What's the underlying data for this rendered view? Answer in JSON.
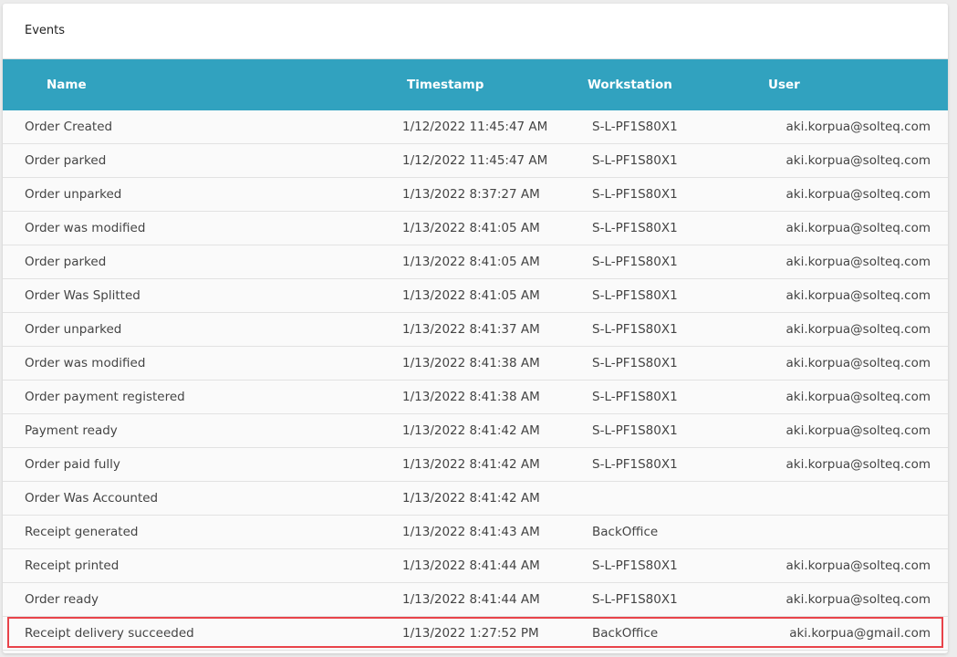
{
  "title": "Events",
  "columns": [
    "Name",
    "Timestamp",
    "Workstation",
    "User"
  ],
  "rows": [
    [
      "Order Created",
      "1/12/2022 11:45:47 AM",
      "S-L-PF1S80X1",
      "aki.korpua@solteq.com"
    ],
    [
      "Order parked",
      "1/12/2022 11:45:47 AM",
      "S-L-PF1S80X1",
      "aki.korpua@solteq.com"
    ],
    [
      "Order unparked",
      "1/13/2022 8:37:27 AM",
      "S-L-PF1S80X1",
      "aki.korpua@solteq.com"
    ],
    [
      "Order was modified",
      "1/13/2022 8:41:05 AM",
      "S-L-PF1S80X1",
      "aki.korpua@solteq.com"
    ],
    [
      "Order parked",
      "1/13/2022 8:41:05 AM",
      "S-L-PF1S80X1",
      "aki.korpua@solteq.com"
    ],
    [
      "Order Was Splitted",
      "1/13/2022 8:41:05 AM",
      "S-L-PF1S80X1",
      "aki.korpua@solteq.com"
    ],
    [
      "Order unparked",
      "1/13/2022 8:41:37 AM",
      "S-L-PF1S80X1",
      "aki.korpua@solteq.com"
    ],
    [
      "Order was modified",
      "1/13/2022 8:41:38 AM",
      "S-L-PF1S80X1",
      "aki.korpua@solteq.com"
    ],
    [
      "Order payment registered",
      "1/13/2022 8:41:38 AM",
      "S-L-PF1S80X1",
      "aki.korpua@solteq.com"
    ],
    [
      "Payment ready",
      "1/13/2022 8:41:42 AM",
      "S-L-PF1S80X1",
      "aki.korpua@solteq.com"
    ],
    [
      "Order paid fully",
      "1/13/2022 8:41:42 AM",
      "S-L-PF1S80X1",
      "aki.korpua@solteq.com"
    ],
    [
      "Order Was Accounted",
      "1/13/2022 8:41:42 AM",
      "",
      ""
    ],
    [
      "Receipt generated",
      "1/13/2022 8:41:43 AM",
      "BackOffice",
      ""
    ],
    [
      "Receipt printed",
      "1/13/2022 8:41:44 AM",
      "S-L-PF1S80X1",
      "aki.korpua@solteq.com"
    ],
    [
      "Order ready",
      "1/13/2022 8:41:44 AM",
      "S-L-PF1S80X1",
      "aki.korpua@solteq.com"
    ],
    [
      "Receipt delivery succeeded",
      "1/13/2022 1:27:52 PM",
      "BackOffice",
      "aki.korpua@gmail.com"
    ]
  ],
  "highlighted_row": 15,
  "colors": {
    "header": "#31a2bf",
    "highlight": "#e8434a"
  }
}
